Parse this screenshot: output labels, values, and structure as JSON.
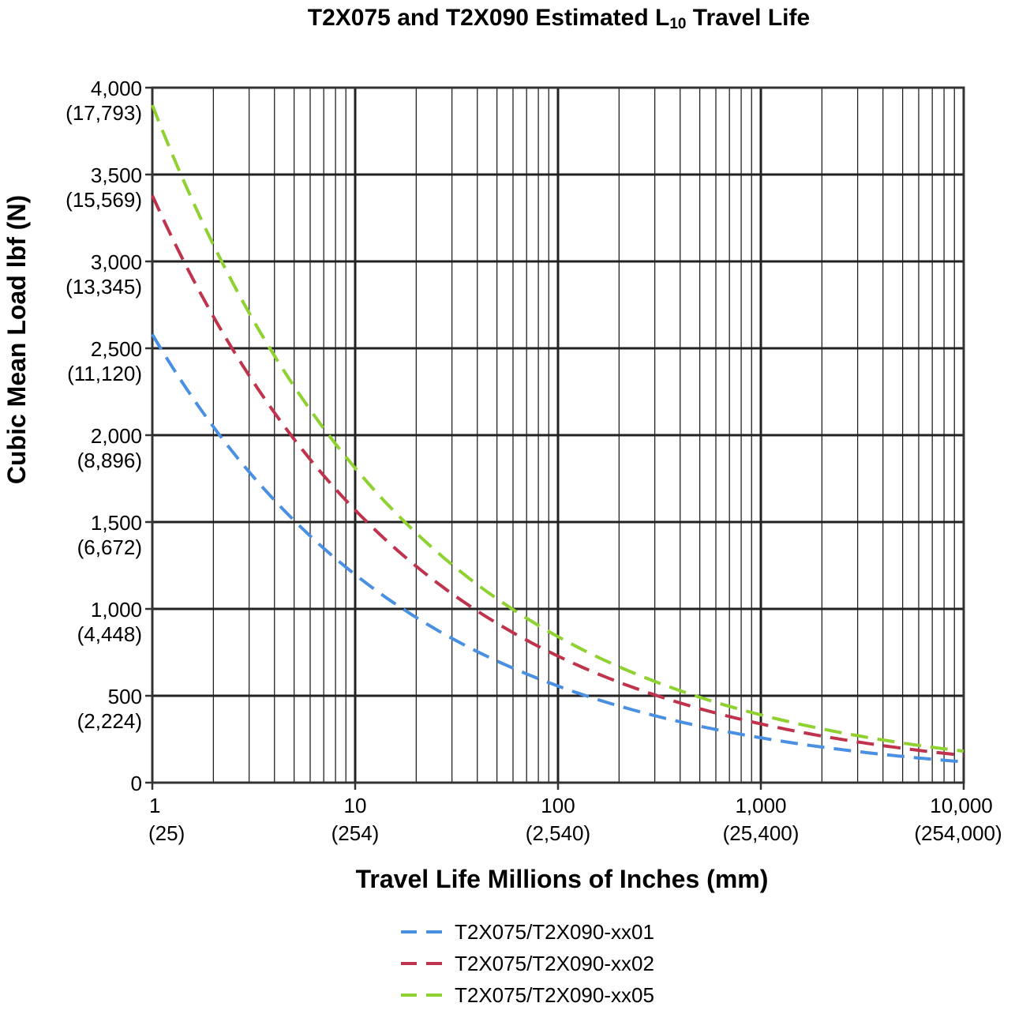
{
  "chart_data": {
    "type": "line",
    "title_main": "T2X075 and T2X090 Estimated L",
    "title_sub": "10",
    "title_end": " Travel Life",
    "xlabel": "Travel Life Millions of Inches (mm)",
    "ylabel": "Cubic Mean Load lbf (N)",
    "x_scale": "log",
    "xlim": [
      1,
      10000
    ],
    "ylim": [
      0,
      4000
    ],
    "grid": true,
    "legend_position": "bottom",
    "x_ticks": [
      {
        "value": 1,
        "label": "1",
        "sublabel": "(25)"
      },
      {
        "value": 10,
        "label": "10",
        "sublabel": "(254)"
      },
      {
        "value": 100,
        "label": "100",
        "sublabel": "(2,540)"
      },
      {
        "value": 1000,
        "label": "1,000",
        "sublabel": "(25,400)"
      },
      {
        "value": 10000,
        "label": "10,000",
        "sublabel": "(254,000)"
      }
    ],
    "y_ticks": [
      {
        "value": 4000,
        "label": "4,000",
        "sublabel": "(17,793)"
      },
      {
        "value": 3500,
        "label": "3,500",
        "sublabel": "(15,569)"
      },
      {
        "value": 3000,
        "label": "3,000",
        "sublabel": "(13,345)"
      },
      {
        "value": 2500,
        "label": "2,500",
        "sublabel": "(11,120)"
      },
      {
        "value": 2000,
        "label": "2,000",
        "sublabel": "(8,896)"
      },
      {
        "value": 1500,
        "label": "1,500",
        "sublabel": "(6,672)"
      },
      {
        "value": 1000,
        "label": "1,000",
        "sublabel": "(4,448)"
      },
      {
        "value": 500,
        "label": "500",
        "sublabel": "(2,224)"
      },
      {
        "value": 0,
        "label": "0",
        "sublabel": ""
      }
    ],
    "series": [
      {
        "name": "T2X075/T2X090-xx01",
        "color": "#4a90e2",
        "line_style": "dashed",
        "C": 2580,
        "exponent": 3
      },
      {
        "name": "T2X075/T2X090-xx02",
        "color": "#c0334d",
        "line_style": "dashed",
        "C": 3380,
        "exponent": 3
      },
      {
        "name": "T2X075/T2X090-xx05",
        "color": "#8fd130",
        "line_style": "dashed",
        "C": 3900,
        "exponent": 3
      }
    ]
  }
}
